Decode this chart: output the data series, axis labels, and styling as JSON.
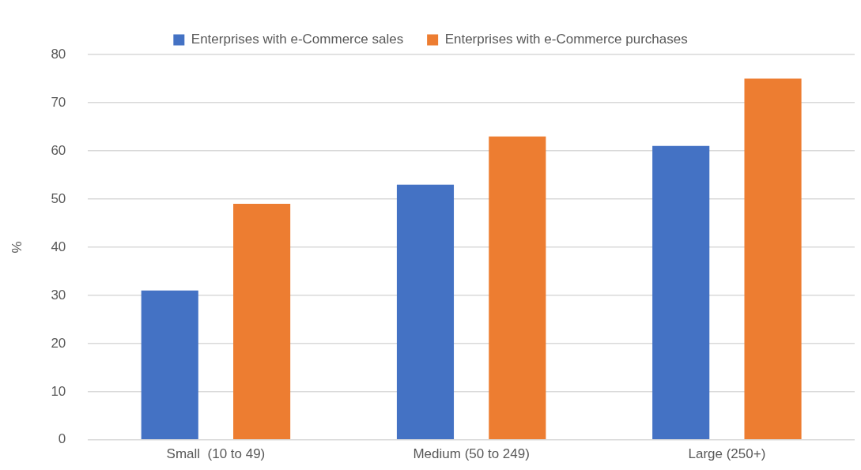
{
  "chart_data": {
    "type": "bar",
    "categories": [
      "Small  (10 to 49)",
      "Medium (50 to 249)",
      "Large (250+)"
    ],
    "series": [
      {
        "name": "Enterprises with e-Commerce sales",
        "color": "#4472c4",
        "values": [
          31,
          53,
          61
        ]
      },
      {
        "name": "Enterprises with e-Commerce purchases",
        "color": "#ed7d31",
        "values": [
          49,
          63,
          75
        ]
      }
    ],
    "ylabel": "%",
    "ylim": [
      0,
      80
    ],
    "yticks": [
      0,
      10,
      20,
      30,
      40,
      50,
      60,
      70,
      80
    ],
    "grid": "y",
    "legend": "top"
  }
}
